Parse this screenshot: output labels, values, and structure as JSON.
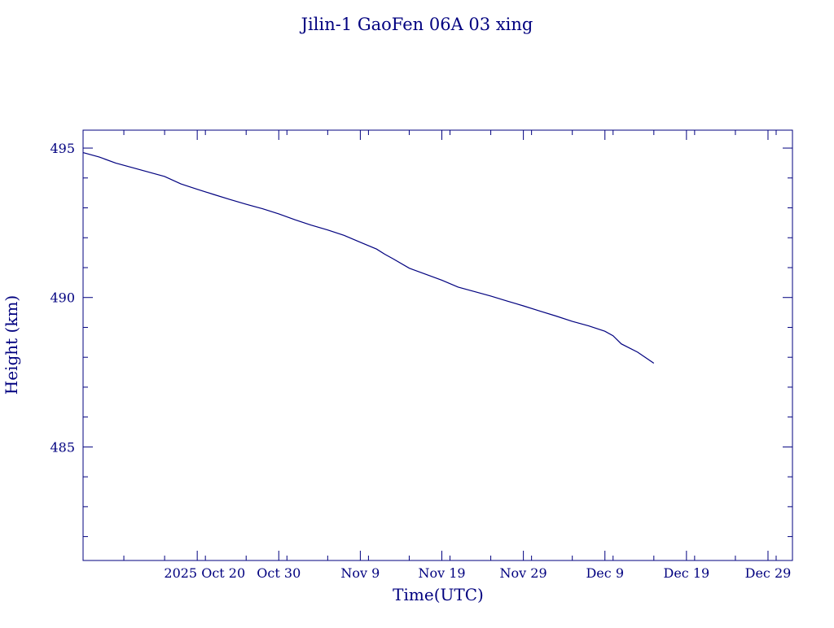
{
  "chart_data": {
    "type": "line",
    "title": "Jilin-1 GaoFen 06A 03 xing",
    "xlabel": "Time(UTC)",
    "ylabel": "Height (km)",
    "ylim": [
      481.2,
      495.6
    ],
    "xlim": [
      "2025-10-06",
      "2026-01-01"
    ],
    "yticks": [
      485,
      490,
      495
    ],
    "ytick_labels": [
      "485",
      "490",
      "495"
    ],
    "yminor_step": 1,
    "xticks": [
      "2025-10-20",
      "2025-10-30",
      "2025-11-09",
      "2025-11-19",
      "2025-11-29",
      "2025-12-09",
      "2025-12-19",
      "2025-12-29"
    ],
    "xtick_labels": [
      "2025 Oct 20",
      "Oct 30",
      "Nov  9",
      "Nov 19",
      "Nov 29",
      "Dec  9",
      "Dec 19",
      "Dec 29"
    ],
    "xminor_step_days": 5,
    "color": "#00007f",
    "grid": false,
    "series": [
      {
        "x": [
          "2025-10-06",
          "2025-10-08",
          "2025-10-10",
          "2025-10-12",
          "2025-10-14",
          "2025-10-16",
          "2025-10-18",
          "2025-10-20",
          "2025-10-22",
          "2025-10-24",
          "2025-10-26",
          "2025-10-28",
          "2025-10-30",
          "2025-11-01",
          "2025-11-03",
          "2025-11-05",
          "2025-11-07",
          "2025-11-09",
          "2025-11-11",
          "2025-11-12",
          "2025-11-13",
          "2025-11-15",
          "2025-11-17",
          "2025-11-19",
          "2025-11-21",
          "2025-11-23",
          "2025-11-25",
          "2025-11-27",
          "2025-11-29",
          "2025-12-01",
          "2025-12-03",
          "2025-12-05",
          "2025-12-07",
          "2025-12-09",
          "2025-12-10",
          "2025-12-11",
          "2025-12-13",
          "2025-12-15"
        ],
        "y": [
          494.85,
          494.7,
          494.5,
          494.35,
          494.2,
          494.05,
          493.8,
          493.62,
          493.45,
          493.28,
          493.12,
          492.97,
          492.8,
          492.6,
          492.42,
          492.26,
          492.08,
          491.85,
          491.62,
          491.45,
          491.3,
          490.98,
          490.78,
          490.58,
          490.35,
          490.2,
          490.05,
          489.88,
          489.72,
          489.55,
          489.38,
          489.2,
          489.05,
          488.87,
          488.72,
          488.45,
          488.17,
          487.8
        ]
      }
    ]
  }
}
